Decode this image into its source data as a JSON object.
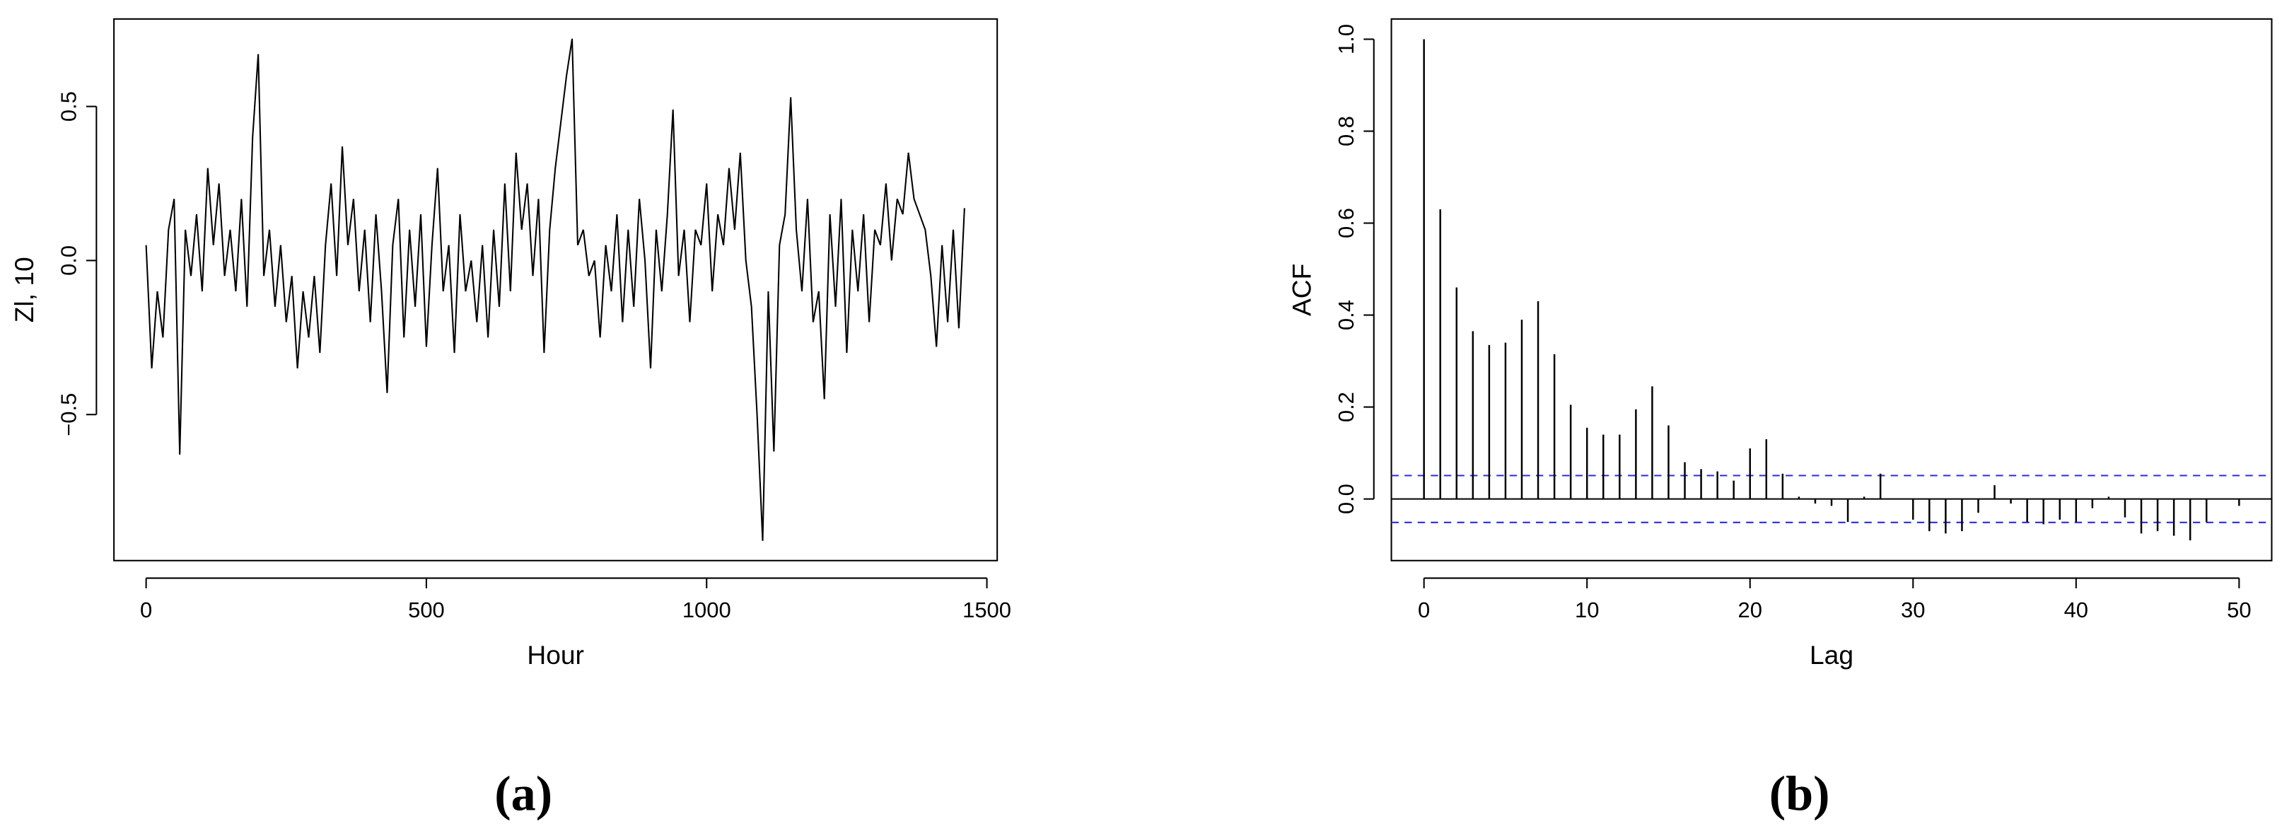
{
  "chart_data": [
    {
      "type": "line",
      "xlabel": "Hour",
      "ylabel": "Zl, 10",
      "panel_label": "(a)",
      "color": "#000000",
      "xlim": [
        -57.4,
        1518.4
      ],
      "ylim": [
        -0.974,
        0.784
      ],
      "xticks": [
        0,
        500,
        1000,
        1500
      ],
      "yticks": [
        {
          "value": -0.5,
          "label": "−0.5"
        },
        {
          "value": 0,
          "label": "0.0"
        },
        0.5
      ],
      "x": [
        0,
        10,
        20,
        30,
        40,
        50,
        60,
        70,
        80,
        90,
        100,
        110,
        120,
        130,
        140,
        150,
        160,
        170,
        180,
        190,
        200,
        210,
        220,
        230,
        240,
        250,
        260,
        270,
        280,
        290,
        300,
        310,
        320,
        330,
        340,
        350,
        360,
        370,
        380,
        390,
        400,
        410,
        420,
        430,
        440,
        450,
        460,
        470,
        480,
        490,
        500,
        510,
        520,
        530,
        540,
        550,
        560,
        570,
        580,
        590,
        600,
        610,
        620,
        630,
        640,
        650,
        660,
        670,
        680,
        690,
        700,
        710,
        720,
        730,
        740,
        750,
        760,
        770,
        780,
        790,
        800,
        810,
        820,
        830,
        840,
        850,
        860,
        870,
        880,
        890,
        900,
        910,
        920,
        930,
        940,
        950,
        960,
        970,
        980,
        990,
        1000,
        1010,
        1020,
        1030,
        1040,
        1050,
        1060,
        1070,
        1080,
        1090,
        1100,
        1110,
        1120,
        1130,
        1140,
        1150,
        1160,
        1170,
        1180,
        1190,
        1200,
        1210,
        1220,
        1230,
        1240,
        1250,
        1260,
        1270,
        1280,
        1290,
        1300,
        1310,
        1320,
        1330,
        1340,
        1350,
        1360,
        1370,
        1380,
        1390,
        1400,
        1410,
        1420,
        1430,
        1440,
        1450,
        1460
      ],
      "values": [
        0.05,
        -0.35,
        -0.1,
        -0.25,
        0.1,
        0.2,
        -0.63,
        0.1,
        -0.05,
        0.15,
        -0.1,
        0.3,
        0.05,
        0.25,
        -0.05,
        0.1,
        -0.1,
        0.2,
        -0.15,
        0.4,
        0.67,
        -0.05,
        0.1,
        -0.15,
        0.05,
        -0.2,
        -0.05,
        -0.35,
        -0.1,
        -0.25,
        -0.05,
        -0.3,
        0.05,
        0.25,
        -0.05,
        0.37,
        0.05,
        0.2,
        -0.1,
        0.1,
        -0.2,
        0.15,
        -0.1,
        -0.43,
        0.05,
        0.2,
        -0.25,
        0.1,
        -0.15,
        0.15,
        -0.28,
        0.05,
        0.3,
        -0.1,
        0.05,
        -0.3,
        0.15,
        -0.1,
        0.0,
        -0.2,
        0.05,
        -0.25,
        0.1,
        -0.15,
        0.25,
        -0.1,
        0.35,
        0.1,
        0.25,
        -0.05,
        0.2,
        -0.3,
        0.1,
        0.3,
        0.45,
        0.6,
        0.72,
        0.05,
        0.1,
        -0.05,
        0.0,
        -0.25,
        0.05,
        -0.1,
        0.15,
        -0.2,
        0.1,
        -0.15,
        0.2,
        0.0,
        -0.35,
        0.1,
        -0.1,
        0.15,
        0.49,
        -0.05,
        0.1,
        -0.2,
        0.1,
        0.05,
        0.25,
        -0.1,
        0.15,
        0.05,
        0.3,
        0.1,
        0.35,
        0.0,
        -0.15,
        -0.5,
        -0.91,
        -0.1,
        -0.62,
        0.05,
        0.15,
        0.53,
        0.1,
        -0.1,
        0.2,
        -0.2,
        -0.1,
        -0.45,
        0.15,
        -0.15,
        0.2,
        -0.3,
        0.1,
        -0.1,
        0.15,
        -0.2,
        0.1,
        0.05,
        0.25,
        0.0,
        0.2,
        0.15,
        0.35,
        0.2,
        0.15,
        0.1,
        -0.05,
        -0.28,
        0.05,
        -0.2,
        0.1,
        -0.22,
        0.17
      ]
    },
    {
      "type": "stem",
      "xlabel": "Lag",
      "ylabel": "ACF",
      "panel_label": "(b)",
      "color": "#000000",
      "ci": 0.051,
      "ci_color": "#2b2bdd",
      "xlim": [
        -2,
        52
      ],
      "ylim": [
        -0.134,
        1.044
      ],
      "xticks": [
        0,
        10,
        20,
        30,
        40,
        50
      ],
      "yticks": [
        {
          "value": 0,
          "label": "0.0"
        },
        0.2,
        0.4,
        0.6,
        0.8,
        {
          "value": 1,
          "label": "1.0"
        }
      ],
      "x": [
        0,
        1,
        2,
        3,
        4,
        5,
        6,
        7,
        8,
        9,
        10,
        11,
        12,
        13,
        14,
        15,
        16,
        17,
        18,
        19,
        20,
        21,
        22,
        23,
        24,
        25,
        26,
        27,
        28,
        29,
        30,
        31,
        32,
        33,
        34,
        35,
        36,
        37,
        38,
        39,
        40,
        41,
        42,
        43,
        44,
        45,
        46,
        47,
        48,
        49,
        50
      ],
      "values": [
        1.0,
        0.63,
        0.46,
        0.365,
        0.335,
        0.34,
        0.39,
        0.43,
        0.315,
        0.205,
        0.155,
        0.14,
        0.14,
        0.195,
        0.245,
        0.16,
        0.08,
        0.065,
        0.06,
        0.04,
        0.11,
        0.13,
        0.055,
        0.005,
        -0.01,
        -0.015,
        -0.05,
        0.005,
        0.055,
        0.0,
        -0.045,
        -0.07,
        -0.075,
        -0.07,
        -0.03,
        0.03,
        -0.01,
        -0.05,
        -0.055,
        -0.045,
        -0.05,
        -0.02,
        0.005,
        -0.04,
        -0.075,
        -0.07,
        -0.08,
        -0.09,
        -0.05,
        0.0,
        -0.015
      ]
    }
  ]
}
